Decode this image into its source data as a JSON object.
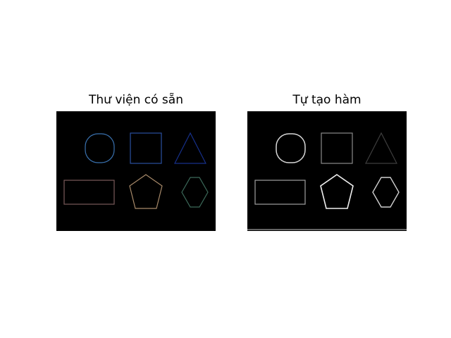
{
  "figure": {
    "panels": [
      {
        "title": "Thư viện có sẵn",
        "shape_colors": {
          "circle": "#3a72b0",
          "square": "#2a4fa0",
          "triangle": "#16308a",
          "rectangle": "#7a5a5a",
          "pentagon": "#a88a6a",
          "hexagon": "#3c6a5a"
        }
      },
      {
        "title": "Tự tạo hàm",
        "shape_colors": {
          "circle": "#d8d8d8",
          "square": "#8a8a8a",
          "triangle": "#3e3e3e",
          "rectangle": "#a0a0a0",
          "pentagon": "#f0f0f0",
          "hexagon": "#d0d0d0"
        }
      }
    ],
    "background_color": "#000000"
  }
}
